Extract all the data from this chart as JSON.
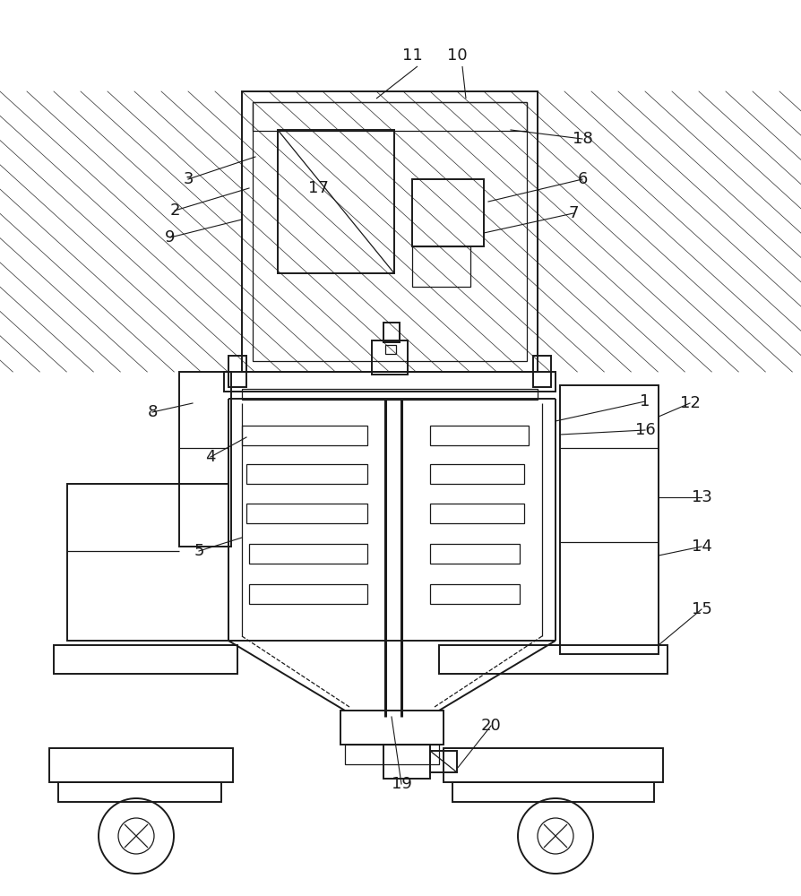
{
  "bg_color": "#ffffff",
  "line_color": "#1a1a1a",
  "lw": 1.4,
  "lw_thin": 0.9,
  "figsize": [
    8.95,
    10.0
  ],
  "dpi": 100
}
